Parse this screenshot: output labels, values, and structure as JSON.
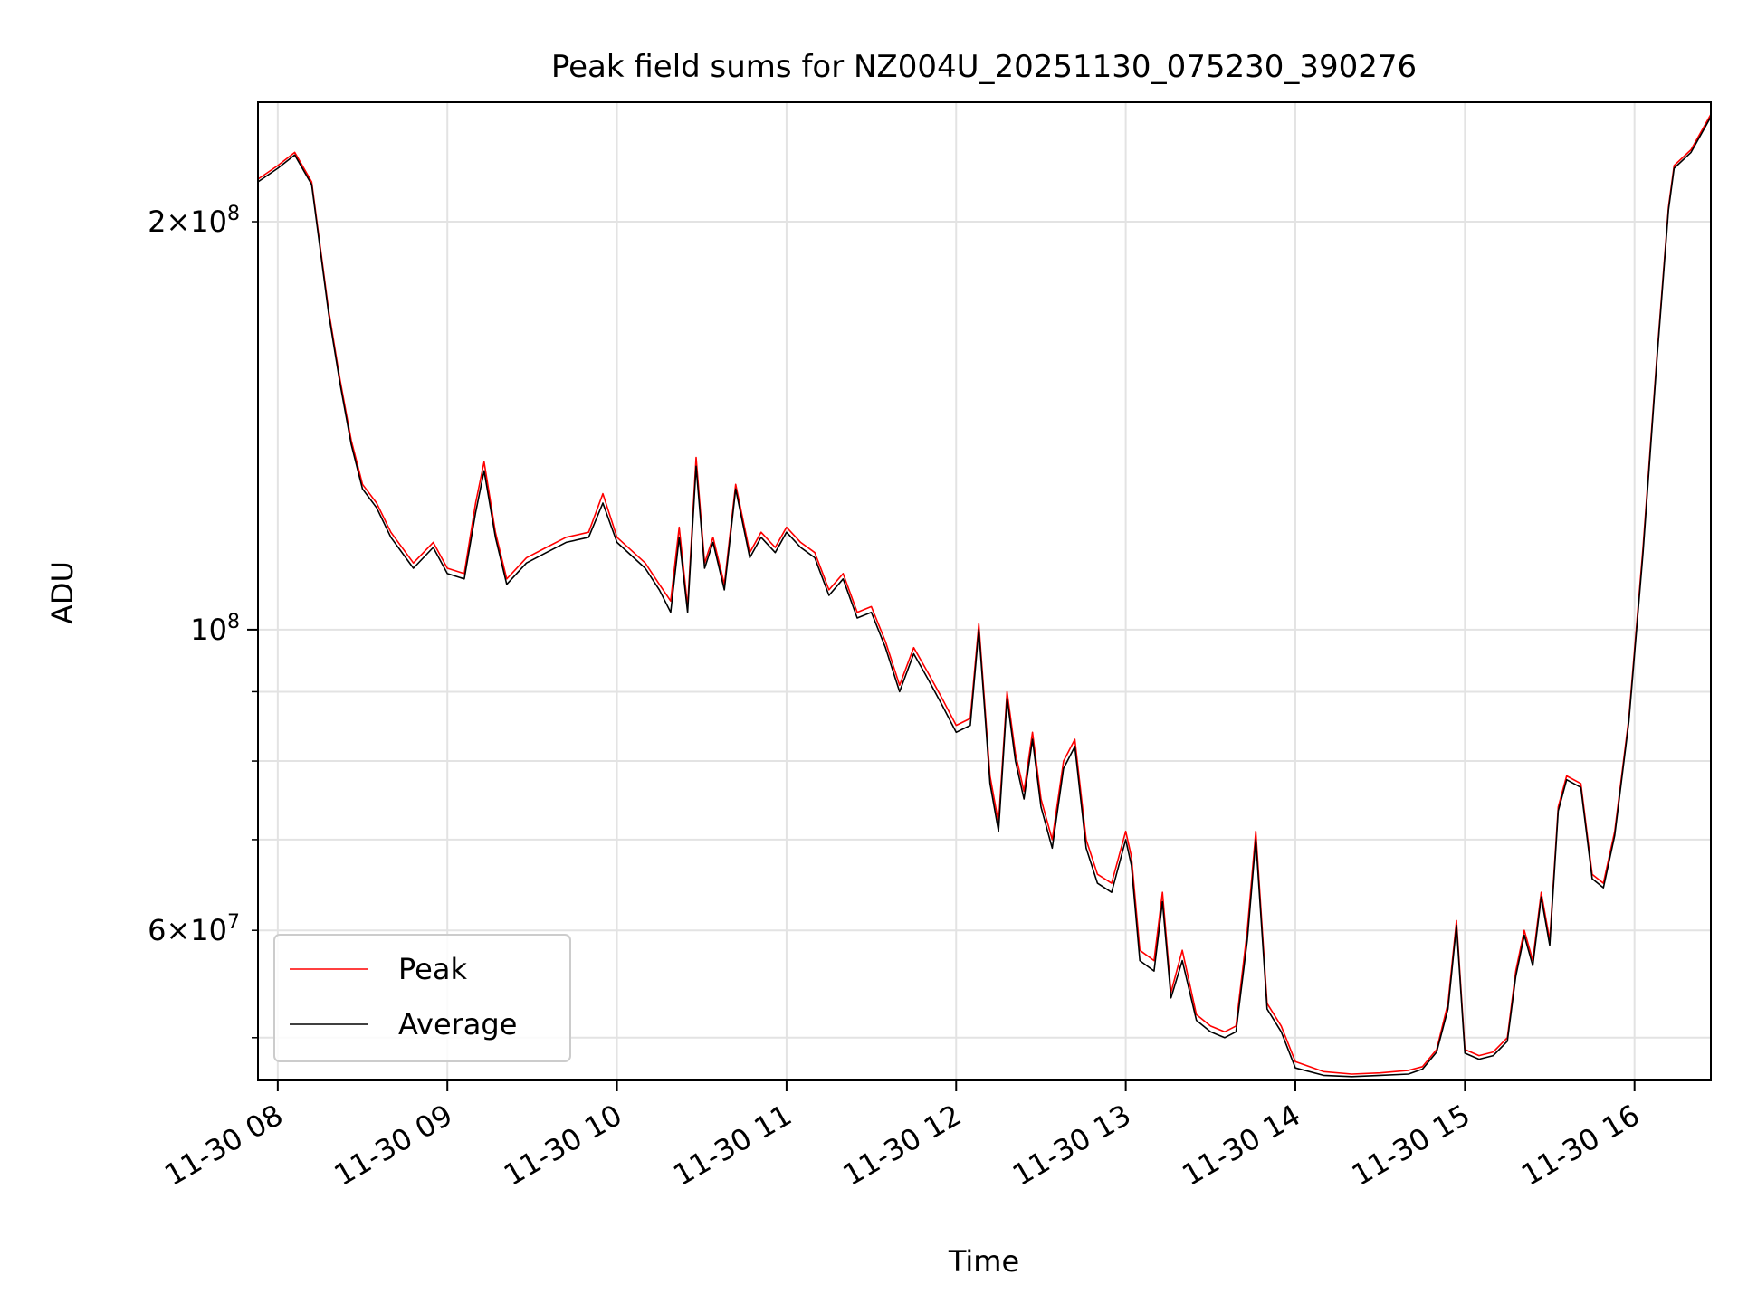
{
  "chart_data": {
    "type": "line",
    "title": "Peak field sums for NZ004U_20251130_075230_390276",
    "xlabel": "Time",
    "ylabel": "ADU",
    "y_scale": "log",
    "ylim": [
      46500000,
      245000000
    ],
    "xlim": [
      "2025-11-30T07:53",
      "2025-11-30T16:27"
    ],
    "grid": true,
    "legend_position": "lower-left",
    "x_ticks": [
      {
        "value": "2025-11-30T08:00",
        "label": "11-30 08"
      },
      {
        "value": "2025-11-30T09:00",
        "label": "11-30 09"
      },
      {
        "value": "2025-11-30T10:00",
        "label": "11-30 10"
      },
      {
        "value": "2025-11-30T11:00",
        "label": "11-30 11"
      },
      {
        "value": "2025-11-30T12:00",
        "label": "11-30 12"
      },
      {
        "value": "2025-11-30T13:00",
        "label": "11-30 13"
      },
      {
        "value": "2025-11-30T14:00",
        "label": "11-30 14"
      },
      {
        "value": "2025-11-30T15:00",
        "label": "11-30 15"
      },
      {
        "value": "2025-11-30T16:00",
        "label": "11-30 16"
      }
    ],
    "y_ticks_major": [
      {
        "value": 100000000,
        "base": "10",
        "exp": "8"
      }
    ],
    "y_ticks_minor": [
      {
        "value": 60000000,
        "coef": "6",
        "exp": "7"
      },
      {
        "value": 200000000,
        "coef": "2",
        "exp": "8"
      }
    ],
    "y_ticks_minor_unlabeled": [
      50000000,
      70000000,
      80000000,
      90000000
    ],
    "times": [
      "2025-11-30T07:53",
      "2025-11-30T08:00",
      "2025-11-30T08:06",
      "2025-11-30T08:12",
      "2025-11-30T08:18",
      "2025-11-30T08:22",
      "2025-11-30T08:26",
      "2025-11-30T08:30",
      "2025-11-30T08:35",
      "2025-11-30T08:40",
      "2025-11-30T08:48",
      "2025-11-30T08:55",
      "2025-11-30T09:00",
      "2025-11-30T09:06",
      "2025-11-30T09:10",
      "2025-11-30T09:13",
      "2025-11-30T09:17",
      "2025-11-30T09:21",
      "2025-11-30T09:28",
      "2025-11-30T09:35",
      "2025-11-30T09:42",
      "2025-11-30T09:50",
      "2025-11-30T09:55",
      "2025-11-30T10:00",
      "2025-11-30T10:10",
      "2025-11-30T10:15",
      "2025-11-30T10:19",
      "2025-11-30T10:22",
      "2025-11-30T10:25",
      "2025-11-30T10:28",
      "2025-11-30T10:31",
      "2025-11-30T10:34",
      "2025-11-30T10:38",
      "2025-11-30T10:42",
      "2025-11-30T10:47",
      "2025-11-30T10:51",
      "2025-11-30T10:56",
      "2025-11-30T11:00",
      "2025-11-30T11:05",
      "2025-11-30T11:10",
      "2025-11-30T11:15",
      "2025-11-30T11:20",
      "2025-11-30T11:25",
      "2025-11-30T11:30",
      "2025-11-30T11:35",
      "2025-11-30T11:40",
      "2025-11-30T11:45",
      "2025-11-30T11:50",
      "2025-11-30T11:55",
      "2025-11-30T12:00",
      "2025-11-30T12:05",
      "2025-11-30T12:08",
      "2025-11-30T12:12",
      "2025-11-30T12:15",
      "2025-11-30T12:18",
      "2025-11-30T12:21",
      "2025-11-30T12:24",
      "2025-11-30T12:27",
      "2025-11-30T12:30",
      "2025-11-30T12:34",
      "2025-11-30T12:38",
      "2025-11-30T12:42",
      "2025-11-30T12:46",
      "2025-11-30T12:50",
      "2025-11-30T12:55",
      "2025-11-30T13:00",
      "2025-11-30T13:02",
      "2025-11-30T13:05",
      "2025-11-30T13:10",
      "2025-11-30T13:13",
      "2025-11-30T13:16",
      "2025-11-30T13:20",
      "2025-11-30T13:25",
      "2025-11-30T13:30",
      "2025-11-30T13:35",
      "2025-11-30T13:39",
      "2025-11-30T13:43",
      "2025-11-30T13:46",
      "2025-11-30T13:50",
      "2025-11-30T13:55",
      "2025-11-30T14:00",
      "2025-11-30T14:10",
      "2025-11-30T14:20",
      "2025-11-30T14:30",
      "2025-11-30T14:40",
      "2025-11-30T14:45",
      "2025-11-30T14:50",
      "2025-11-30T14:54",
      "2025-11-30T14:57",
      "2025-11-30T15:00",
      "2025-11-30T15:05",
      "2025-11-30T15:10",
      "2025-11-30T15:15",
      "2025-11-30T15:18",
      "2025-11-30T15:21",
      "2025-11-30T15:24",
      "2025-11-30T15:27",
      "2025-11-30T15:30",
      "2025-11-30T15:33",
      "2025-11-30T15:36",
      "2025-11-30T15:41",
      "2025-11-30T15:45",
      "2025-11-30T15:49",
      "2025-11-30T15:53",
      "2025-11-30T15:58",
      "2025-11-30T16:03",
      "2025-11-30T16:08",
      "2025-11-30T16:12",
      "2025-11-30T16:14",
      "2025-11-30T16:20",
      "2025-11-30T16:27"
    ],
    "series": [
      {
        "name": "Peak",
        "color": "#ff0000",
        "values": [
          215000000,
          220000000,
          225000000,
          214000000,
          172000000,
          153000000,
          138000000,
          128000000,
          124000000,
          118000000,
          112000000,
          116000000,
          111000000,
          110000000,
          124000000,
          133000000,
          118000000,
          109000000,
          113000000,
          115000000,
          117000000,
          118000000,
          126000000,
          117000000,
          112000000,
          108000000,
          105000000,
          119000000,
          104000000,
          134000000,
          112000000,
          117000000,
          108000000,
          128000000,
          114000000,
          118000000,
          115000000,
          119000000,
          116000000,
          114000000,
          107000000,
          110000000,
          103000000,
          104000000,
          98000000,
          91000000,
          97000000,
          93000000,
          89000000,
          85000000,
          86000000,
          101000000,
          78000000,
          72000000,
          90000000,
          81000000,
          76000000,
          84000000,
          75000000,
          70000000,
          80000000,
          83000000,
          70000000,
          66000000,
          65000000,
          71000000,
          68000000,
          58000000,
          57000000,
          64000000,
          54000000,
          58000000,
          52000000,
          51000000,
          50500000,
          51000000,
          60000000,
          71000000,
          53000000,
          51000000,
          48000000,
          47200000,
          47000000,
          47100000,
          47300000,
          47600000,
          49000000,
          53000000,
          61000000,
          49000000,
          48500000,
          48800000,
          50000000,
          56000000,
          60000000,
          57000000,
          64000000,
          59000000,
          74000000,
          78000000,
          77000000,
          66000000,
          65000000,
          71000000,
          86000000,
          115000000,
          160000000,
          205000000,
          220000000,
          226000000,
          240000000
        ]
      },
      {
        "name": "Average",
        "color": "#000000",
        "values": [
          214000000,
          219000000,
          224000000,
          213000000,
          171000000,
          152000000,
          137000000,
          127000000,
          123000000,
          117000000,
          111000000,
          115000000,
          110000000,
          109000000,
          122000000,
          131000000,
          117000000,
          108000000,
          112000000,
          114000000,
          116000000,
          117000000,
          124000000,
          116000000,
          111000000,
          107000000,
          103000000,
          117000000,
          103000000,
          132000000,
          111000000,
          116000000,
          107000000,
          127000000,
          113000000,
          117000000,
          114000000,
          118000000,
          115000000,
          113000000,
          106000000,
          109000000,
          102000000,
          103000000,
          97000000,
          90000000,
          96000000,
          92000000,
          88000000,
          84000000,
          85000000,
          100000000,
          77000000,
          71000000,
          89000000,
          80000000,
          75000000,
          83000000,
          74000000,
          69000000,
          79000000,
          82000000,
          69000000,
          65000000,
          64000000,
          70000000,
          67000000,
          57000000,
          56000000,
          63000000,
          53500000,
          57000000,
          51500000,
          50500000,
          50000000,
          50500000,
          59000000,
          70000000,
          52500000,
          50500000,
          47500000,
          46900000,
          46800000,
          46900000,
          47000000,
          47400000,
          48800000,
          52500000,
          60500000,
          48700000,
          48200000,
          48500000,
          49700000,
          55500000,
          59500000,
          56500000,
          63500000,
          58500000,
          73500000,
          77500000,
          76500000,
          65500000,
          64500000,
          70500000,
          85500000,
          114000000,
          159000000,
          204000000,
          219000000,
          225000000,
          239000000
        ]
      }
    ]
  }
}
